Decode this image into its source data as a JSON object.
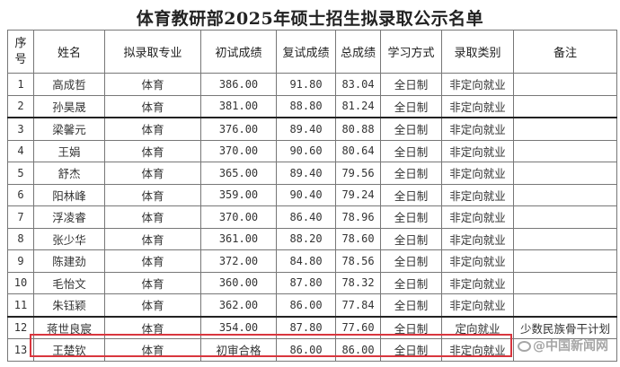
{
  "title": "体育教研部2025年硕士招生拟录取公示名单",
  "columns": [
    "序号",
    "姓名",
    "拟录取专业",
    "初试成绩",
    "复试成绩",
    "总成绩",
    "学习方式",
    "录取类别",
    "备注"
  ],
  "rows": [
    [
      "1",
      "高成哲",
      "体育",
      "386.00",
      "91.80",
      "83.04",
      "全日制",
      "非定向就业",
      ""
    ],
    [
      "2",
      "孙昊晟",
      "体育",
      "381.00",
      "88.80",
      "81.24",
      "全日制",
      "非定向就业",
      ""
    ],
    [
      "3",
      "梁馨元",
      "体育",
      "376.00",
      "89.40",
      "80.88",
      "全日制",
      "非定向就业",
      ""
    ],
    [
      "4",
      "王娟",
      "体育",
      "370.00",
      "90.60",
      "80.64",
      "全日制",
      "非定向就业",
      ""
    ],
    [
      "5",
      "舒杰",
      "体育",
      "365.00",
      "89.40",
      "79.56",
      "全日制",
      "非定向就业",
      ""
    ],
    [
      "6",
      "阳林峰",
      "体育",
      "359.00",
      "90.40",
      "79.24",
      "全日制",
      "非定向就业",
      ""
    ],
    [
      "7",
      "浮凌睿",
      "体育",
      "370.00",
      "86.40",
      "78.96",
      "全日制",
      "非定向就业",
      ""
    ],
    [
      "8",
      "张少华",
      "体育",
      "361.00",
      "88.20",
      "78.60",
      "全日制",
      "非定向就业",
      ""
    ],
    [
      "9",
      "陈建劲",
      "体育",
      "372.00",
      "84.80",
      "78.56",
      "全日制",
      "非定向就业",
      ""
    ],
    [
      "10",
      "毛怡文",
      "体育",
      "360.00",
      "87.80",
      "78.32",
      "全日制",
      "非定向就业",
      ""
    ],
    [
      "11",
      "朱钰颖",
      "体育",
      "362.00",
      "86.00",
      "77.84",
      "全日制",
      "非定向就业",
      ""
    ],
    [
      "12",
      "蒋世良宸",
      "体育",
      "354.00",
      "87.80",
      "77.60",
      "全日制",
      "定向就业",
      "少数民族骨干计划"
    ],
    [
      "13",
      "王楚钦",
      "体育",
      "初审合格",
      "86.00",
      "86.00",
      "全日制",
      "非定向就业",
      ""
    ]
  ],
  "highlight_color": "#d9363e",
  "watermark": "@中国新闻网"
}
